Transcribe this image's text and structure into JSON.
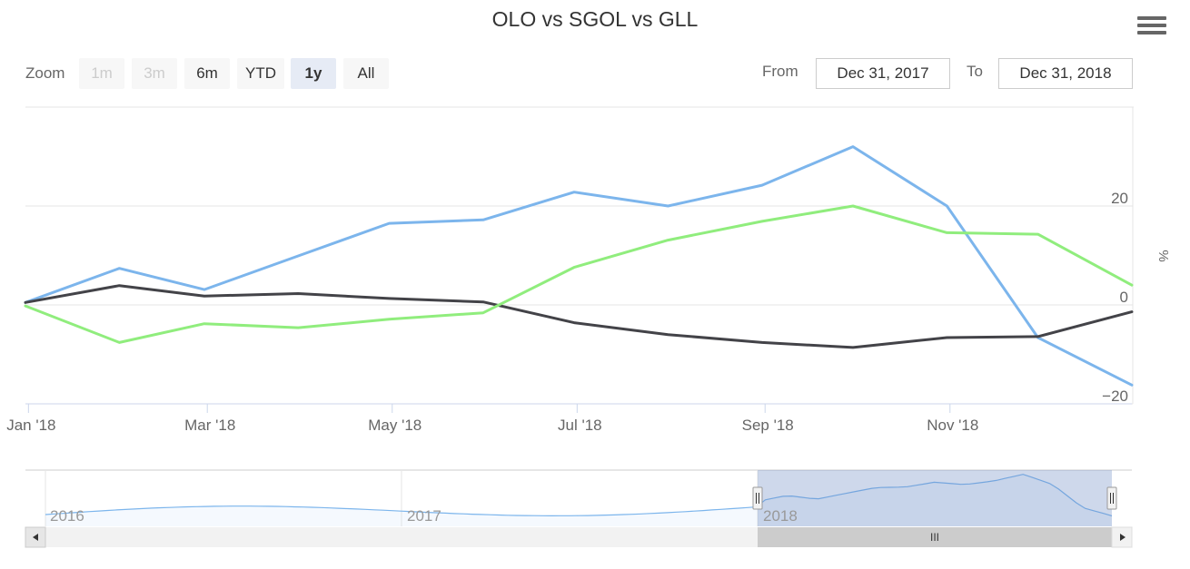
{
  "title": "OLO vs SGOL vs GLL",
  "menu": {
    "icon": "hamburger-menu-icon"
  },
  "range_selector": {
    "zoom_label": "Zoom",
    "buttons": [
      {
        "label": "1m",
        "state": "disabled"
      },
      {
        "label": "3m",
        "state": "disabled"
      },
      {
        "label": "6m",
        "state": "normal"
      },
      {
        "label": "YTD",
        "state": "normal"
      },
      {
        "label": "1y",
        "state": "active"
      },
      {
        "label": "All",
        "state": "normal"
      }
    ],
    "from_label": "From",
    "from_value": "Dec 31, 2017",
    "to_label": "To",
    "to_value": "Dec 31, 2018"
  },
  "chart_data": {
    "type": "line",
    "title": "OLO vs SGOL vs GLL",
    "x": [
      "2017-12-31",
      "2018-01-31",
      "2018-02-28",
      "2018-03-31",
      "2018-04-30",
      "2018-05-31",
      "2018-06-30",
      "2018-07-31",
      "2018-08-31",
      "2018-09-30",
      "2018-10-31",
      "2018-11-30",
      "2018-12-31"
    ],
    "series": [
      {
        "color": "#7cb5ec",
        "values": [
          0.5,
          7.4,
          3.1,
          9.9,
          16.5,
          17.2,
          22.8,
          20.0,
          24.2,
          32.0,
          20.0,
          -6.6,
          -16.2
        ]
      },
      {
        "color": "#434348",
        "values": [
          0.5,
          3.9,
          1.8,
          2.3,
          1.3,
          0.6,
          -3.6,
          -6.0,
          -7.6,
          -8.6,
          -6.6,
          -6.4,
          -1.4
        ]
      },
      {
        "color": "#90ed7d",
        "values": [
          -0.2,
          -7.6,
          -3.8,
          -4.6,
          -2.9,
          -1.6,
          7.6,
          13.1,
          16.9,
          20.0,
          14.6,
          14.3,
          4.0
        ]
      }
    ],
    "xlabel": "",
    "ylabel": "%",
    "x_tick_labels": [
      "Jan '18",
      "Mar '18",
      "May '18",
      "Jul '18",
      "Sep '18",
      "Nov '18"
    ],
    "y_ticks": [
      -20,
      0,
      20
    ],
    "ylim": [
      -20,
      40
    ],
    "grid": true,
    "navigator": {
      "x_labels": [
        "2016",
        "2017",
        "2018"
      ],
      "selected_range": [
        "2017-12-31",
        "2018-12-31"
      ],
      "scrollbar_grip": "III"
    }
  }
}
